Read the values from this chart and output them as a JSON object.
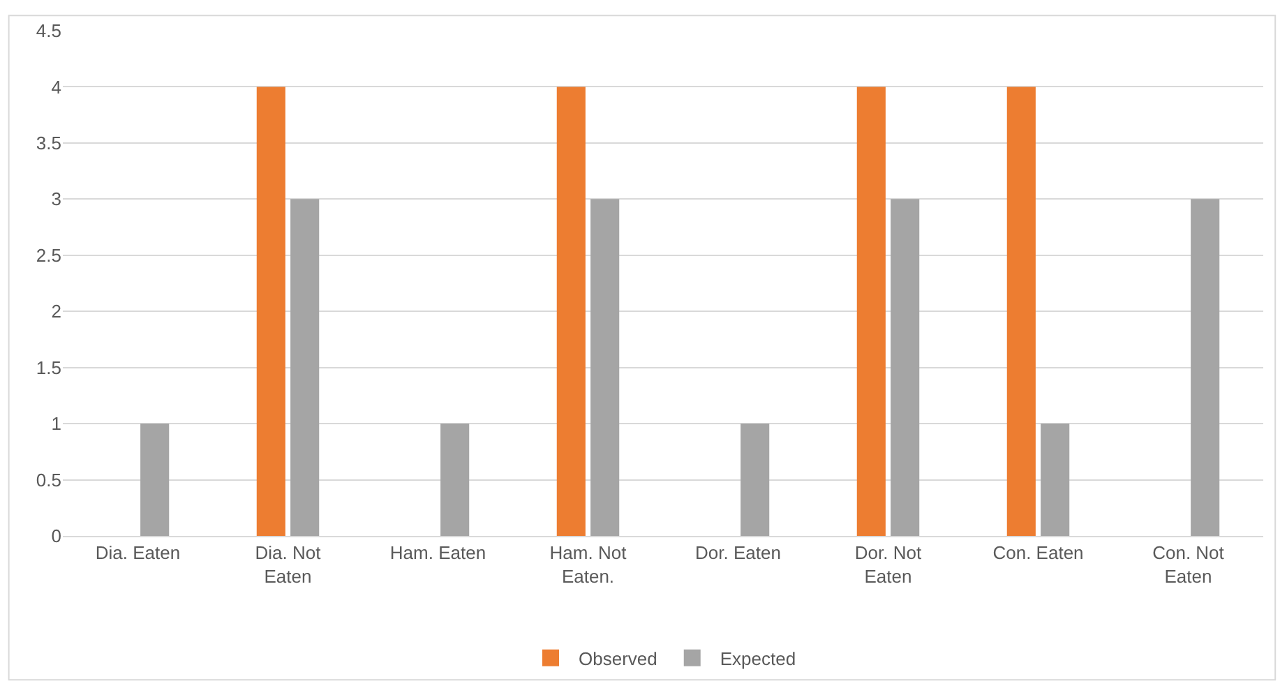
{
  "chart_data": {
    "type": "bar",
    "categories": [
      "Dia. Eaten",
      "Dia. Not Eaten",
      "Ham. Eaten",
      "Ham. Not Eaten.",
      "Dor. Eaten",
      "Dor. Not Eaten",
      "Con. Eaten",
      "Con. Not Eaten"
    ],
    "series": [
      {
        "name": "Observed",
        "color": "#ed7d31",
        "values": [
          0,
          4,
          0,
          4,
          0,
          4,
          4,
          0
        ]
      },
      {
        "name": "Expected",
        "color": "#a5a5a5",
        "values": [
          1,
          3,
          1,
          3,
          1,
          3,
          1,
          3
        ]
      }
    ],
    "ylim": [
      0,
      4.5
    ],
    "yticks": [
      0,
      0.5,
      1,
      1.5,
      2,
      2.5,
      3,
      3.5,
      4,
      4.5
    ],
    "grid": "y",
    "legend": "bottom"
  }
}
